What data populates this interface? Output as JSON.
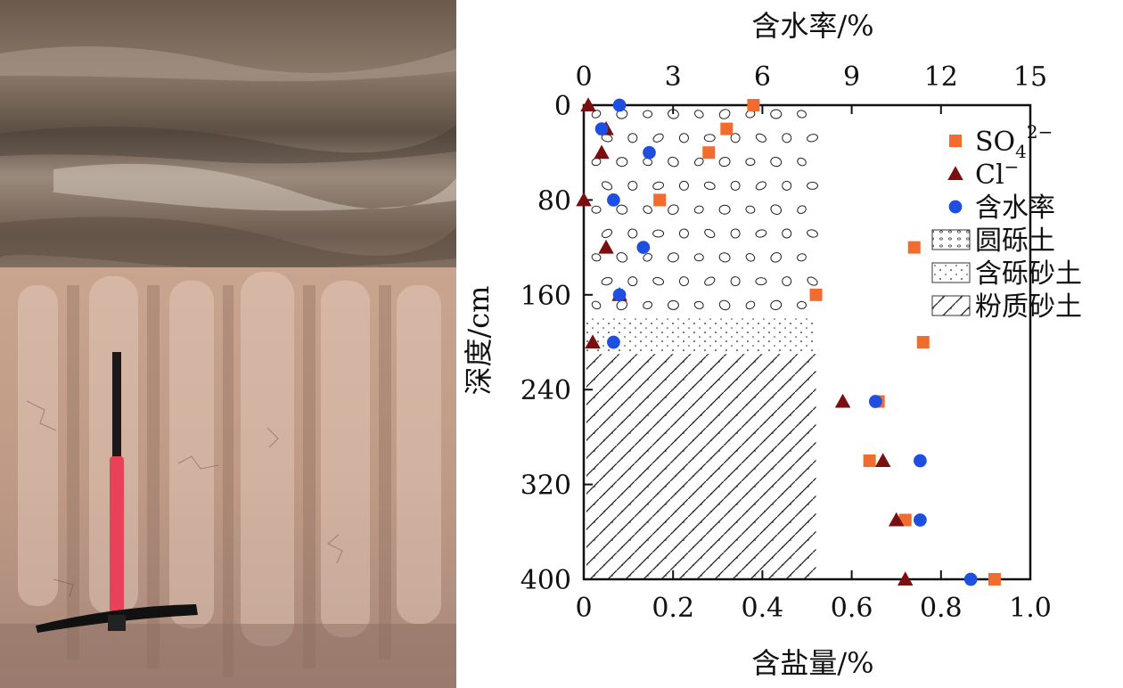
{
  "photo": {
    "description_icon": "soil-profile-photo-with-pickaxe"
  },
  "chart_data": {
    "type": "scatter",
    "xlabel_top": "含水率/%",
    "xlabel_bottom": "含盐量/%",
    "ylabel": "深度/cm",
    "x_top_range": [
      0,
      15
    ],
    "x_top_ticks": [
      "0",
      "3",
      "6",
      "9",
      "12",
      "15"
    ],
    "x_bottom_range": [
      0,
      1.0
    ],
    "x_bottom_ticks": [
      "0",
      "0.2",
      "0.4",
      "0.6",
      "0.8",
      "1.0"
    ],
    "y_range": [
      0,
      400
    ],
    "y_ticks": [
      "0",
      "80",
      "160",
      "240",
      "320",
      "400"
    ],
    "y_inverted": true,
    "series": [
      {
        "name": "SO₄²⁻",
        "axis": "bottom",
        "marker": "square",
        "color": "#f26b2f",
        "points": [
          [
            0.38,
            0
          ],
          [
            0.32,
            20
          ],
          [
            0.28,
            40
          ],
          [
            0.17,
            80
          ],
          [
            0.74,
            120
          ],
          [
            0.52,
            160
          ],
          [
            0.76,
            200
          ],
          [
            0.66,
            250
          ],
          [
            0.64,
            300
          ],
          [
            0.72,
            350
          ],
          [
            0.92,
            400
          ]
        ]
      },
      {
        "name": "Cl⁻",
        "axis": "bottom",
        "marker": "triangle",
        "color": "#7a0f0f",
        "points": [
          [
            0.01,
            0
          ],
          [
            0.05,
            20
          ],
          [
            0.04,
            40
          ],
          [
            0.0,
            80
          ],
          [
            0.05,
            120
          ],
          [
            0.08,
            160
          ],
          [
            0.02,
            200
          ],
          [
            0.58,
            250
          ],
          [
            0.67,
            300
          ],
          [
            0.7,
            350
          ],
          [
            0.72,
            400
          ]
        ]
      },
      {
        "name": "含水率",
        "axis": "top",
        "marker": "circle",
        "color": "#1f4fe0",
        "points": [
          [
            1.2,
            0
          ],
          [
            0.6,
            20
          ],
          [
            2.2,
            40
          ],
          [
            1.0,
            80
          ],
          [
            2.0,
            120
          ],
          [
            1.2,
            160
          ],
          [
            1.0,
            200
          ],
          [
            9.8,
            250
          ],
          [
            11.3,
            300
          ],
          [
            11.3,
            350
          ],
          [
            13.0,
            400
          ]
        ]
      }
    ],
    "soil_layers": [
      {
        "name": "圆砾土",
        "depth": [
          0,
          180
        ],
        "pattern": "gravel"
      },
      {
        "name": "含砾砂土",
        "depth": [
          180,
          210
        ],
        "pattern": "dots"
      },
      {
        "name": "粉质砂土",
        "depth": [
          210,
          400
        ],
        "pattern": "hatch"
      }
    ],
    "legend_position": "right",
    "legend": [
      {
        "label": "SO",
        "sub": "4",
        "sup": "2−",
        "marker": "square",
        "color": "#f26b2f"
      },
      {
        "label": "Cl",
        "sub": "",
        "sup": "−",
        "marker": "triangle",
        "color": "#7a0f0f"
      },
      {
        "label": "含水率",
        "sub": "",
        "sup": "",
        "marker": "circle",
        "color": "#1f4fe0"
      },
      {
        "label": "圆砾土",
        "sub": "",
        "sup": "",
        "marker": "gravel-swatch",
        "color": "#555555"
      },
      {
        "label": "含砾砂土",
        "sub": "",
        "sup": "",
        "marker": "dots-swatch",
        "color": "#555555"
      },
      {
        "label": "粉质砂土",
        "sub": "",
        "sup": "",
        "marker": "hatch-swatch",
        "color": "#555555"
      }
    ]
  }
}
